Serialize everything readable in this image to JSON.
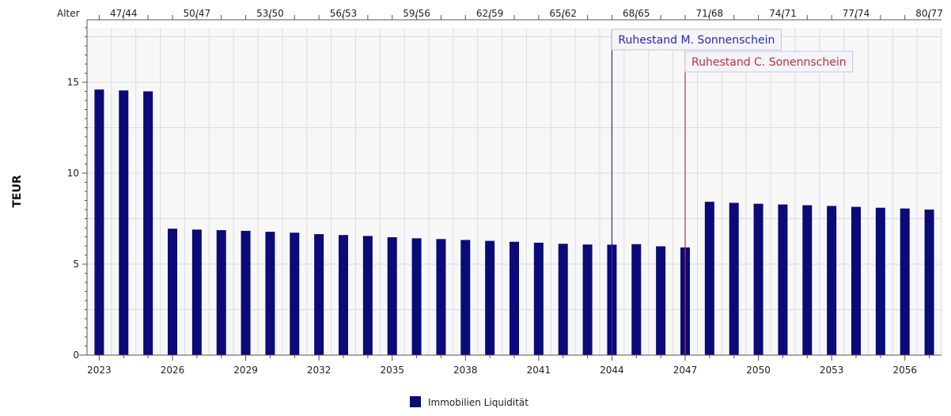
{
  "chart_data": {
    "type": "bar",
    "title": "",
    "xlabel": "",
    "ylabel": "TEUR",
    "ylim": [
      0,
      18
    ],
    "yticks": [
      0,
      5,
      10,
      15
    ],
    "grid": true,
    "legend_position": "bottom",
    "colors": {
      "bar": "#0a0a78",
      "annotation_1": "#2a2ab0",
      "annotation_2": "#c0303a"
    },
    "categories": [
      "2023",
      "2024",
      "2025",
      "2026",
      "2027",
      "2028",
      "2029",
      "2030",
      "2031",
      "2032",
      "2033",
      "2034",
      "2035",
      "2036",
      "2037",
      "2038",
      "2039",
      "2040",
      "2041",
      "2042",
      "2043",
      "2044",
      "2045",
      "2046",
      "2047",
      "2048",
      "2049",
      "2050",
      "2051",
      "2052",
      "2053",
      "2054",
      "2055",
      "2056",
      "2057"
    ],
    "xticks": [
      "2023",
      "2026",
      "2029",
      "2032",
      "2035",
      "2038",
      "2041",
      "2044",
      "2047",
      "2050",
      "2053",
      "2056"
    ],
    "series": [
      {
        "name": "Immobilien Liquidität",
        "values": [
          14.6,
          14.55,
          14.5,
          6.95,
          6.9,
          6.87,
          6.83,
          6.78,
          6.73,
          6.65,
          6.6,
          6.55,
          6.48,
          6.42,
          6.38,
          6.33,
          6.28,
          6.23,
          6.18,
          6.12,
          6.08,
          6.07,
          6.1,
          5.98,
          5.92,
          8.43,
          8.37,
          8.32,
          8.28,
          8.24,
          8.2,
          8.15,
          8.1,
          8.06,
          8.0
        ]
      }
    ],
    "top_axis": {
      "title": "Alter",
      "labels": [
        {
          "year": "2024",
          "label": "47/44"
        },
        {
          "year": "2027",
          "label": "50/47"
        },
        {
          "year": "2030",
          "label": "53/50"
        },
        {
          "year": "2033",
          "label": "56/53"
        },
        {
          "year": "2036",
          "label": "59/56"
        },
        {
          "year": "2039",
          "label": "62/59"
        },
        {
          "year": "2042",
          "label": "65/62"
        },
        {
          "year": "2045",
          "label": "68/65"
        },
        {
          "year": "2048",
          "label": "71/68"
        },
        {
          "year": "2051",
          "label": "74/71"
        },
        {
          "year": "2054",
          "label": "77/74"
        },
        {
          "year": "2057",
          "label": "80/77"
        }
      ]
    },
    "annotations": [
      {
        "year": "2044",
        "label": "Ruhestand M. Sonnenschein",
        "color": "#2a2ab0"
      },
      {
        "year": "2047",
        "label": "Ruhestand C. Sonennschein",
        "color": "#c0303a"
      }
    ]
  }
}
